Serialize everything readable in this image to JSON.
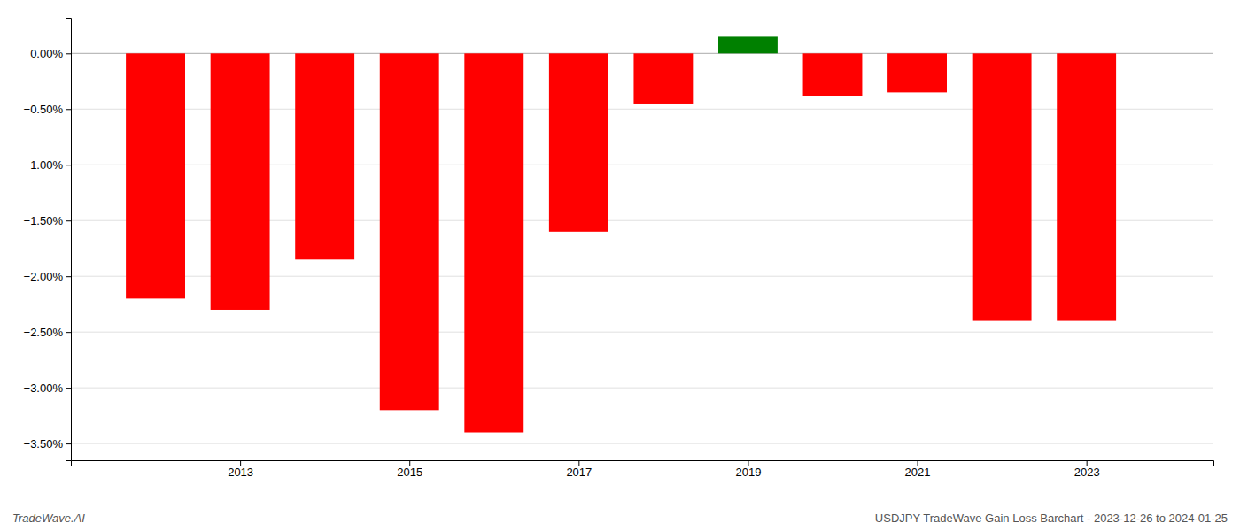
{
  "chart_data": {
    "type": "bar",
    "x": [
      2012,
      2013,
      2014,
      2015,
      2016,
      2017,
      2018,
      2019,
      2020,
      2021,
      2022,
      2023
    ],
    "values": [
      -2.2,
      -2.3,
      -1.85,
      -3.2,
      -3.4,
      -1.6,
      -0.45,
      0.15,
      -0.38,
      -0.35,
      -2.4,
      -2.4
    ],
    "colors": [
      "#ff0000",
      "#ff0000",
      "#ff0000",
      "#ff0000",
      "#ff0000",
      "#ff0000",
      "#ff0000",
      "#008000",
      "#ff0000",
      "#ff0000",
      "#ff0000",
      "#ff0000"
    ],
    "xlim": [
      2011.0,
      2024.5
    ],
    "xticks": [
      2013,
      2015,
      2017,
      2019,
      2021,
      2023
    ],
    "ylim": [
      -3.65,
      0.32
    ],
    "yticks": [
      {
        "value": 0.0,
        "label": "0.00%"
      },
      {
        "value": -0.5,
        "label": "−0.50%"
      },
      {
        "value": -1.0,
        "label": "−1.00%"
      },
      {
        "value": -1.5,
        "label": "−1.50%"
      },
      {
        "value": -2.0,
        "label": "−2.00%"
      },
      {
        "value": -2.5,
        "label": "−2.50%"
      },
      {
        "value": -3.0,
        "label": "−3.00%"
      },
      {
        "value": -3.5,
        "label": "−3.50%"
      }
    ],
    "grid": true,
    "annotations": [
      "TradeWave.AI",
      "USDJPY TradeWave Gain Loss Barchart - 2023-12-26 to 2024-01-25"
    ]
  }
}
